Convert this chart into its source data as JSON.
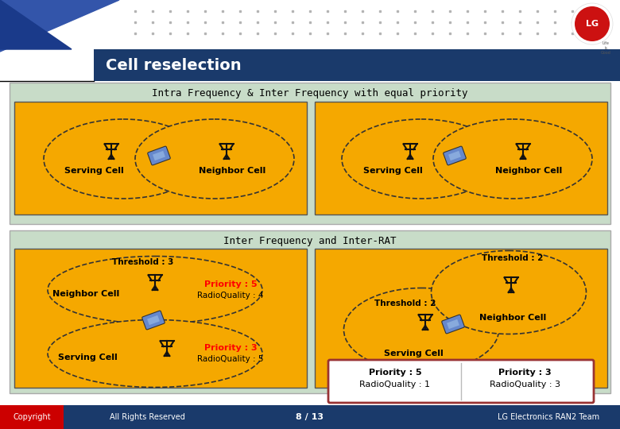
{
  "title": "Cell reselection",
  "header_bg": "#1a3a6b",
  "slide_bg": "#ffffff",
  "top_section_bg": "#c8dcc8",
  "orange_bg": "#f5a800",
  "section1_title": "Intra Frequency & Inter Frequency with equal priority",
  "section2_title": "Inter Frequency and Inter-RAT",
  "footer_bg": "#1a3a6b",
  "footer_red": "#cc0000",
  "footer_text": [
    "Copyright",
    "All Rights Reserved",
    "8 / 13",
    "LG Electronics RAN2 Team"
  ],
  "p1l": {
    "serving": "Serving Cell",
    "neighbor": "Neighbor Cell"
  },
  "p1r": {
    "serving": "Serving Cell",
    "neighbor": "Neighbor Cell"
  },
  "p2l": {
    "threshold": "Threshold : 3",
    "neighbor": "Neighbor Cell",
    "serving": "Serving Cell",
    "pri5": "Priority : 5",
    "rq4": "RadioQuality : 4",
    "pri3": "Priority : 3",
    "rq5": "RadioQuality : 5"
  },
  "p2r": {
    "thresh_top": "Threshold : 2",
    "thresh_mid": "Threshold : 2",
    "neighbor": "Neighbor Cell",
    "serving": "Serving Cell",
    "pri5": "Priority : 5",
    "rq1": "RadioQuality : 1",
    "pri3": "Priority : 3",
    "rq3": "RadioQuality : 3"
  }
}
